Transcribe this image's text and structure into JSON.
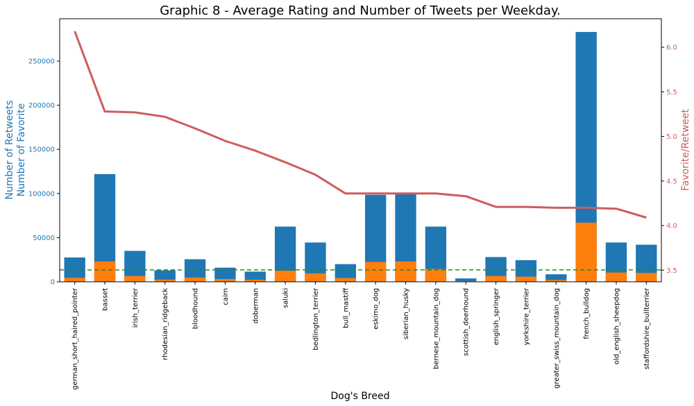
{
  "chart_data": {
    "type": "bar",
    "title": "Graphic 8 - Average Rating and Number of Tweets per Weekday.",
    "xlabel": "Dog's Breed",
    "ylabel_left_line1": "Number of Retweets",
    "ylabel_left_line2": "Number of Favorite",
    "ylabel_right": "Favorite/Retweet",
    "categories": [
      "german_short_haired_pointer",
      "basset",
      "irish_terrier",
      "rhodesian_ridgeback",
      "bloodhound",
      "cairn",
      "doberman",
      "saluki",
      "bedlington_terrier",
      "bull_mastiff",
      "eskimo_dog",
      "siberian_husky",
      "bernese_mountain_dog",
      "scottish_deerhound",
      "english_springer",
      "yorkshire_terrier",
      "greater_swiss_mountain_dog",
      "french_bulldog",
      "old_english_sheepdog",
      "staffordshire_bullterrier"
    ],
    "series": [
      {
        "name": "",
        "axis": "left",
        "kind": "bar",
        "color": "#1f77b4",
        "values": [
          27500,
          122000,
          35000,
          13000,
          25500,
          16000,
          11500,
          62500,
          44500,
          20000,
          98500,
          100000,
          62500,
          3800,
          28000,
          24500,
          8500,
          283000,
          44500,
          42000
        ]
      },
      {
        "name": "",
        "axis": "left",
        "kind": "bar",
        "color": "#ff7f0e",
        "values": [
          4500,
          23000,
          6600,
          2500,
          4800,
          3100,
          2300,
          12500,
          9500,
          4200,
          22500,
          23000,
          14500,
          850,
          6600,
          5800,
          2100,
          67000,
          10500,
          10000
        ]
      },
      {
        "name": "",
        "axis": "right",
        "kind": "line",
        "color": "#cd5c5c",
        "values": [
          6.18,
          5.28,
          5.27,
          5.22,
          5.09,
          4.95,
          4.84,
          4.71,
          4.57,
          4.36,
          4.36,
          4.36,
          4.36,
          4.33,
          4.21,
          4.21,
          4.2,
          4.2,
          4.19,
          4.09
        ]
      }
    ],
    "reference_line": {
      "value": 13500,
      "axis": "left",
      "color": "#228b22",
      "style": "dashed"
    },
    "ylim_left": [
      0,
      298000
    ],
    "ylim_right": [
      3.37,
      6.32
    ],
    "yticks_left": [
      0,
      50000,
      100000,
      150000,
      200000,
      250000
    ],
    "yticks_right": [
      3.5,
      4.0,
      4.5,
      5.0,
      5.5,
      6.0
    ],
    "left_axis_color": "#1f77b4",
    "right_axis_color": "#cd5c5c",
    "grid": false,
    "legend": "none"
  }
}
